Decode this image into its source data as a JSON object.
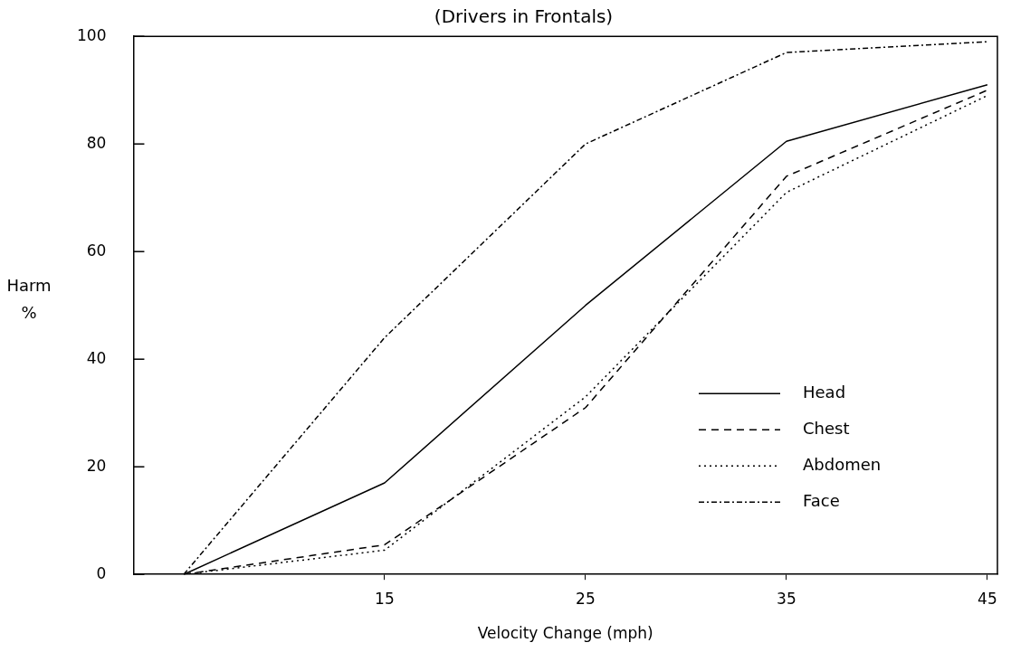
{
  "chart_data": {
    "type": "line",
    "title": "(Drivers in Frontals)",
    "xlabel": "Velocity Change (mph)",
    "ylabel": "Harm %",
    "x": [
      5,
      15,
      25,
      35,
      45
    ],
    "series": [
      {
        "name": "Head",
        "color": "#000000",
        "line_style": "solid",
        "values": [
          0,
          17,
          50,
          80.5,
          91
        ]
      },
      {
        "name": "Chest",
        "color": "#000000",
        "line_style": "dashed",
        "values": [
          0,
          5.5,
          31,
          74,
          90
        ]
      },
      {
        "name": "Abdomen",
        "color": "#000000",
        "line_style": "dotted",
        "values": [
          0,
          4.5,
          33,
          71,
          89
        ]
      },
      {
        "name": "Face",
        "color": "#000000",
        "line_style": "dashdot",
        "values": [
          0,
          44,
          80,
          97,
          99
        ]
      }
    ],
    "xlim": [
      2.5,
      45.5
    ],
    "xticks": [
      15,
      25,
      35,
      45
    ],
    "ylim": [
      0,
      100
    ],
    "yticks": [
      0,
      20,
      40,
      60,
      80,
      100
    ],
    "grid": false,
    "legend": "bottom right",
    "marker": "none"
  }
}
